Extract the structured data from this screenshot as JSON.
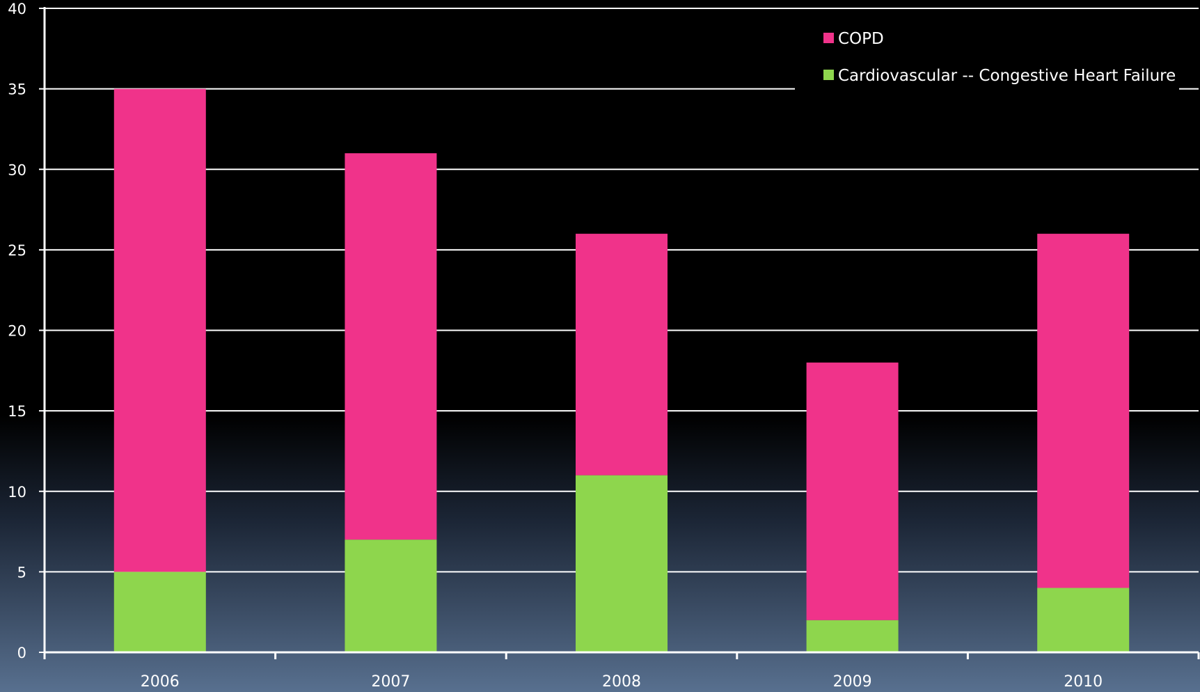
{
  "chart_data": {
    "type": "bar",
    "stacked": true,
    "title": "",
    "xlabel": "",
    "ylabel": "",
    "categories": [
      "2006",
      "2007",
      "2008",
      "2009",
      "2010"
    ],
    "ylim": [
      0,
      40
    ],
    "yticks": [
      "0",
      "5",
      "10",
      "15",
      "20",
      "25",
      "30",
      "35",
      "40"
    ],
    "grid": true,
    "legend_position": "top-right",
    "series": [
      {
        "name": "Cardiovascular -- Congestive Heart Failure",
        "values": [
          5,
          7,
          11,
          2,
          4
        ],
        "color": "#8ED64D"
      },
      {
        "name": "COPD",
        "values": [
          30,
          24,
          15,
          16,
          22
        ],
        "color": "#F0338A"
      }
    ],
    "legend": [
      {
        "label": "COPD",
        "color": "#F0338A"
      },
      {
        "label": "Cardiovascular -- Congestive Heart Failure",
        "color": "#8ED64D"
      }
    ]
  },
  "colors": {
    "background_top": "#000000",
    "background_bottom": "#58708F",
    "axis_and_grid": "#FFFFFF",
    "text": "#FFFFFF"
  }
}
